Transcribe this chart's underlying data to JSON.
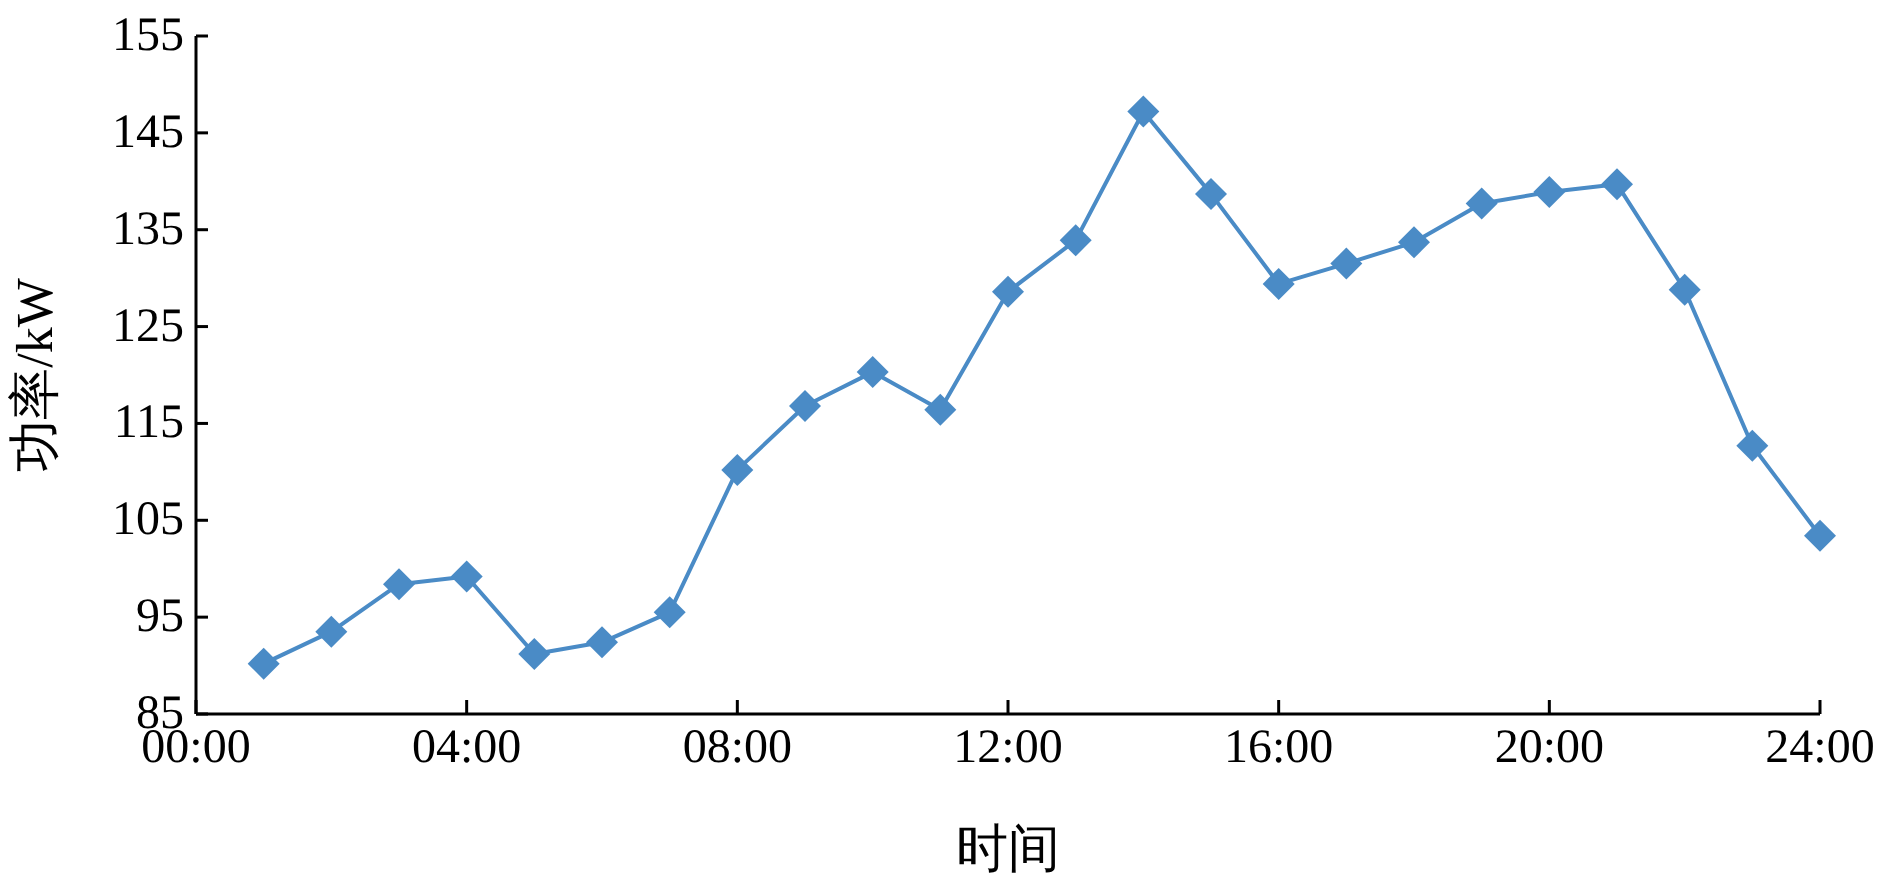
{
  "chart_data": {
    "type": "line",
    "xlabel": "时间",
    "ylabel": "功率/kW",
    "x": [
      1,
      2,
      3,
      4,
      5,
      6,
      7,
      8,
      9,
      10,
      11,
      12,
      13,
      14,
      15,
      16,
      17,
      18,
      19,
      20,
      21,
      22,
      23,
      24
    ],
    "series": [
      {
        "color": "#4a8bc6",
        "values": [
          90.2,
          93.5,
          98.4,
          99.2,
          91.2,
          92.4,
          95.5,
          110.2,
          116.8,
          120.3,
          116.4,
          128.6,
          133.9,
          147.2,
          138.7,
          129.4,
          131.5,
          133.7,
          137.7,
          138.9,
          139.7,
          128.8,
          112.7,
          103.4
        ]
      }
    ],
    "xlim": [
      0,
      24
    ],
    "xticks": [
      {
        "value": 0,
        "label": "00:00"
      },
      {
        "value": 4,
        "label": "04:00"
      },
      {
        "value": 8,
        "label": "08:00"
      },
      {
        "value": 12,
        "label": "12:00"
      },
      {
        "value": 16,
        "label": "16:00"
      },
      {
        "value": 20,
        "label": "20:00"
      },
      {
        "value": 24,
        "label": "24:00"
      }
    ],
    "ylim": [
      85,
      155
    ],
    "yticks": [
      85,
      95,
      105,
      115,
      125,
      135,
      145,
      155
    ],
    "marker": "diamond",
    "line_style": "solid",
    "grid": false
  }
}
